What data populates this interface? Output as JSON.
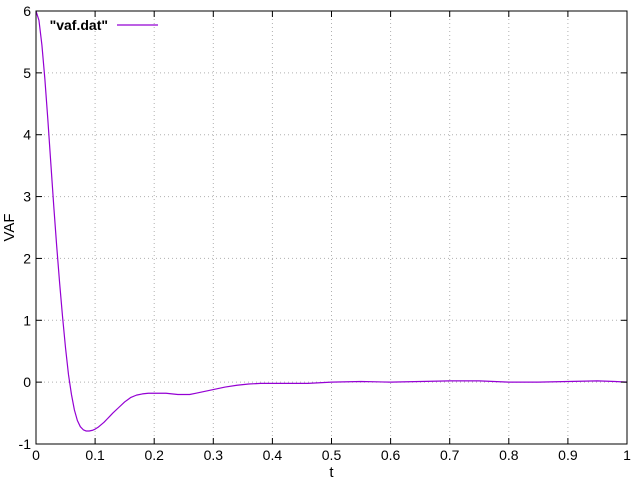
{
  "chart_data": {
    "type": "line",
    "xlabel": "t",
    "ylabel": "VAF",
    "xlim": [
      0,
      1
    ],
    "ylim": [
      -1,
      6
    ],
    "xticks": [
      0,
      0.1,
      0.2,
      0.3,
      0.4,
      0.5,
      0.6,
      0.7,
      0.8,
      0.9,
      1
    ],
    "xtick_labels": [
      "0",
      "0.1",
      "0.2",
      "0.3",
      "0.4",
      "0.5",
      "0.6",
      "0.7",
      "0.8",
      "0.9",
      "1"
    ],
    "yticks": [
      -1,
      0,
      1,
      2,
      3,
      4,
      5,
      6
    ],
    "ytick_labels": [
      "-1",
      "0",
      "1",
      "2",
      "3",
      "4",
      "5",
      "6"
    ],
    "grid": true,
    "legend_position": "top-left",
    "series": [
      {
        "name": "\"vaf.dat\"",
        "color": "#9400d3",
        "x": [
          0,
          0.005,
          0.01,
          0.015,
          0.02,
          0.025,
          0.03,
          0.035,
          0.04,
          0.045,
          0.05,
          0.055,
          0.06,
          0.065,
          0.07,
          0.075,
          0.08,
          0.085,
          0.09,
          0.095,
          0.1,
          0.105,
          0.11,
          0.115,
          0.12,
          0.125,
          0.13,
          0.14,
          0.15,
          0.16,
          0.17,
          0.18,
          0.19,
          0.2,
          0.21,
          0.22,
          0.23,
          0.24,
          0.25,
          0.26,
          0.27,
          0.28,
          0.3,
          0.32,
          0.34,
          0.36,
          0.38,
          0.4,
          0.43,
          0.46,
          0.5,
          0.55,
          0.6,
          0.65,
          0.7,
          0.75,
          0.8,
          0.85,
          0.9,
          0.95,
          0.98,
          1
        ],
        "y": [
          6.0,
          5.85,
          5.45,
          4.9,
          4.25,
          3.55,
          2.85,
          2.2,
          1.6,
          1.05,
          0.55,
          0.12,
          -0.2,
          -0.45,
          -0.62,
          -0.72,
          -0.77,
          -0.79,
          -0.79,
          -0.78,
          -0.76,
          -0.73,
          -0.69,
          -0.65,
          -0.6,
          -0.55,
          -0.5,
          -0.41,
          -0.32,
          -0.25,
          -0.21,
          -0.19,
          -0.18,
          -0.18,
          -0.18,
          -0.18,
          -0.19,
          -0.2,
          -0.2,
          -0.2,
          -0.18,
          -0.16,
          -0.12,
          -0.08,
          -0.05,
          -0.03,
          -0.02,
          -0.02,
          -0.02,
          -0.02,
          0.0,
          0.01,
          0.0,
          0.01,
          0.02,
          0.02,
          0.0,
          0.0,
          0.01,
          0.02,
          0.01,
          0.0
        ]
      }
    ]
  }
}
